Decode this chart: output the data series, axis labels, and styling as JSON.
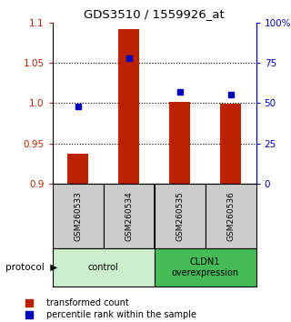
{
  "title": "GDS3510 / 1559926_at",
  "samples": [
    "GSM260533",
    "GSM260534",
    "GSM260535",
    "GSM260536"
  ],
  "transformed_counts": [
    0.937,
    1.092,
    1.001,
    0.999
  ],
  "percentile_ranks": [
    48,
    78,
    57,
    55
  ],
  "ylim_left": [
    0.9,
    1.1
  ],
  "ylim_right": [
    0,
    100
  ],
  "yticks_left": [
    0.9,
    0.95,
    1.0,
    1.05,
    1.1
  ],
  "yticks_right": [
    0,
    25,
    50,
    75,
    100
  ],
  "ytick_labels_right": [
    "0",
    "25",
    "50",
    "75",
    "100%"
  ],
  "bar_color": "#bb2200",
  "marker_color": "#0000bb",
  "groups": [
    {
      "label": "control",
      "indices": [
        0,
        1
      ],
      "color": "#cceecc"
    },
    {
      "label": "CLDN1\noverexpression",
      "indices": [
        2,
        3
      ],
      "color": "#44bb55"
    }
  ],
  "sample_box_color": "#cccccc",
  "legend_bar_label": "transformed count",
  "legend_marker_label": "percentile rank within the sample",
  "dotted_yticks": [
    0.95,
    1.0,
    1.05
  ],
  "bar_baseline": 0.9,
  "bar_width": 0.4
}
